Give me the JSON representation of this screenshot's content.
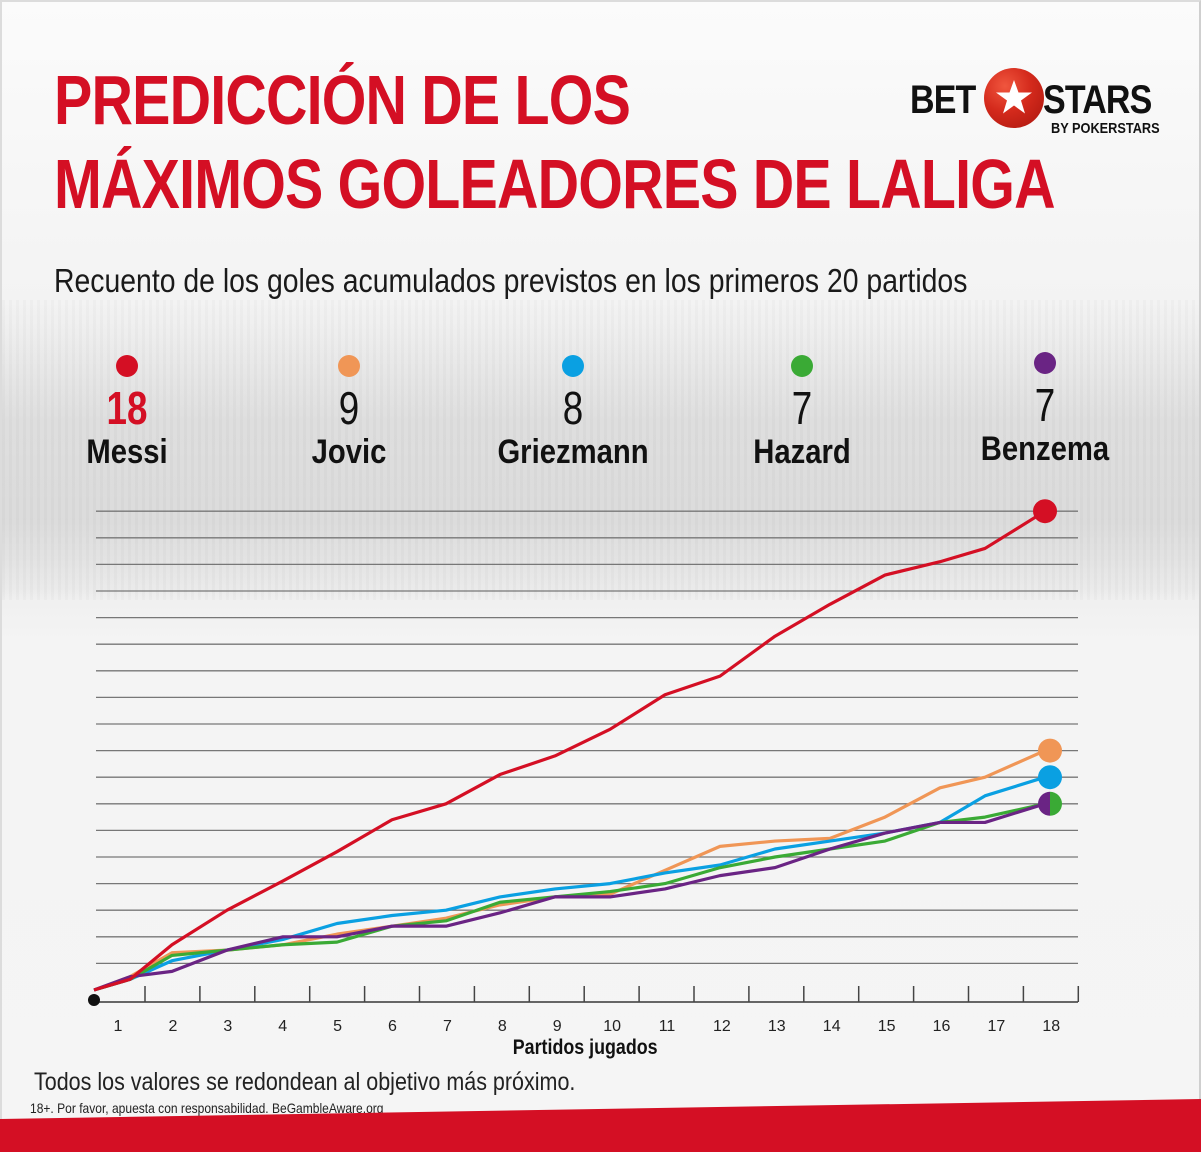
{
  "header": {
    "title_line1": "PREDICCIÓN DE LOS",
    "title_line2": "MÁXIMOS GOLEADORES DE LALIGA",
    "subtitle": "Recuento de los goles acumulados previstos en los primeros 20 partidos"
  },
  "logo": {
    "left": "BET",
    "right": "STARS",
    "byline": "BY POKERSTARS",
    "icon": "star-football-icon"
  },
  "colors": {
    "accent": "#d40f24",
    "messi": "#d40f24",
    "jovic": "#f09656",
    "griezmann": "#0aa0e2",
    "hazard": "#3aaa35",
    "benzema": "#6a2484"
  },
  "legend": [
    {
      "name": "Messi",
      "value": "18",
      "color": "#d40f24"
    },
    {
      "name": "Jovic",
      "value": "9",
      "color": "#f09656"
    },
    {
      "name": "Griezmann",
      "value": "8",
      "color": "#0aa0e2"
    },
    {
      "name": "Hazard",
      "value": "7",
      "color": "#3aaa35"
    },
    {
      "name": "Benzema",
      "value": "7",
      "color": "#6a2484"
    }
  ],
  "footer": {
    "note": "Todos los valores se redondean al objetivo más próximo.",
    "responsibility": "18+. Por favor, apuesta con responsabilidad. BeGambleAware.org"
  },
  "chart_data": {
    "type": "line",
    "title": "PREDICCIÓN DE LOS MÁXIMOS GOLEADORES DE LALIGA",
    "subtitle": "Recuento de los goles acumulados previstos en los primeros 20 partidos",
    "xlabel": "Partidos jugados",
    "ylabel": "",
    "x": [
      1,
      2,
      3,
      4,
      5,
      6,
      7,
      8,
      9,
      10,
      11,
      12,
      13,
      14,
      15,
      16,
      17,
      18
    ],
    "ylim": [
      0,
      18
    ],
    "grid": true,
    "legend_position": "top",
    "series": [
      {
        "name": "Messi",
        "color": "#d40f24",
        "values": [
          0.4,
          1.7,
          3.0,
          4.1,
          5.2,
          6.4,
          7.0,
          8.1,
          8.8,
          9.8,
          11.1,
          11.8,
          13.3,
          14.5,
          15.6,
          16.1,
          16.6,
          18
        ]
      },
      {
        "name": "Jovic",
        "color": "#f09656",
        "values": [
          0.5,
          1.4,
          1.5,
          1.7,
          2.1,
          2.4,
          2.7,
          3.2,
          3.5,
          3.6,
          4.5,
          5.4,
          5.6,
          5.7,
          6.5,
          7.6,
          8.0,
          9
        ]
      },
      {
        "name": "Griezmann",
        "color": "#0aa0e2",
        "values": [
          0.4,
          1.1,
          1.5,
          1.9,
          2.5,
          2.8,
          3.0,
          3.5,
          3.8,
          4.0,
          4.4,
          4.7,
          5.3,
          5.6,
          5.9,
          6.3,
          7.3,
          8
        ]
      },
      {
        "name": "Hazard",
        "color": "#3aaa35",
        "values": [
          0.4,
          1.3,
          1.5,
          1.7,
          1.8,
          2.4,
          2.6,
          3.3,
          3.5,
          3.7,
          4.0,
          4.6,
          5.0,
          5.3,
          5.6,
          6.3,
          6.5,
          7
        ]
      },
      {
        "name": "Benzema",
        "color": "#6a2484",
        "values": [
          0.5,
          0.7,
          1.5,
          2.0,
          2.0,
          2.4,
          2.4,
          2.9,
          3.5,
          3.5,
          3.8,
          4.3,
          4.6,
          5.3,
          5.9,
          6.3,
          6.3,
          7
        ]
      }
    ]
  }
}
